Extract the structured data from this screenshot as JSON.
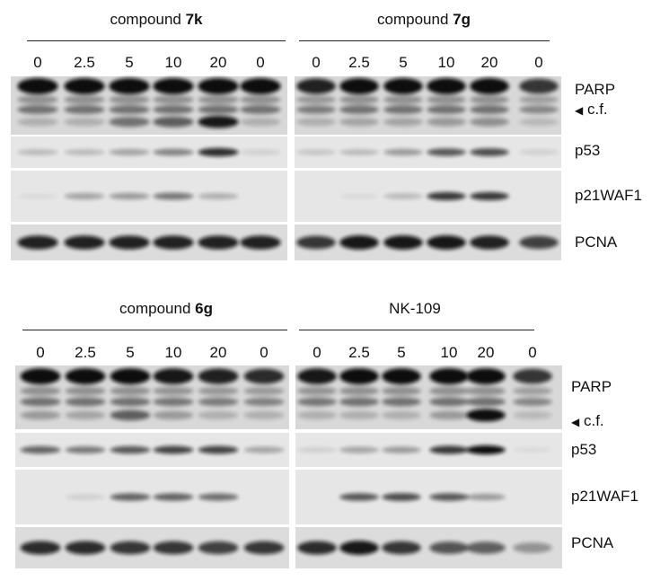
{
  "panels": [
    {
      "id": "7k",
      "title_prefix": "compound ",
      "title_bold": "7k",
      "lanes": [
        "0",
        "2.5",
        "5",
        "10",
        "20",
        "0"
      ],
      "rows": {
        "PARP": [
          1,
          1,
          1,
          1,
          1,
          1
        ],
        "cf": [
          0.2,
          0.2,
          0.5,
          0.6,
          0.95,
          0.2
        ],
        "p53": [
          0.2,
          0.2,
          0.3,
          0.45,
          0.85,
          0.1
        ],
        "p21WAF1": [
          0.05,
          0.3,
          0.35,
          0.5,
          0.25,
          0
        ],
        "PCNA": [
          0.9,
          0.9,
          0.9,
          0.9,
          0.9,
          0.9
        ]
      }
    },
    {
      "id": "7g",
      "title_prefix": "compound ",
      "title_bold": "7g",
      "lanes": [
        "0",
        "2.5",
        "5",
        "10",
        "20",
        "0"
      ],
      "rows": {
        "PARP": [
          0.9,
          1,
          1,
          1,
          1,
          0.8
        ],
        "cf": [
          0.2,
          0.25,
          0.25,
          0.3,
          0.35,
          0.15
        ],
        "p53": [
          0.15,
          0.2,
          0.35,
          0.65,
          0.7,
          0.1
        ],
        "p21WAF1": [
          0,
          0.05,
          0.2,
          0.8,
          0.8,
          0
        ],
        "PCNA": [
          0.8,
          0.95,
          0.95,
          0.95,
          0.9,
          0.75
        ]
      }
    },
    {
      "id": "6g",
      "title_prefix": "compound ",
      "title_bold": "6g",
      "lanes": [
        "0",
        "2.5",
        "5",
        "10",
        "20",
        "0"
      ],
      "rows": {
        "PARP": [
          1,
          1,
          1,
          0.95,
          0.9,
          0.85
        ],
        "cf": [
          0.3,
          0.25,
          0.6,
          0.3,
          0.2,
          0.2
        ],
        "p53": [
          0.6,
          0.5,
          0.65,
          0.75,
          0.75,
          0.3
        ],
        "p21WAF1": [
          0,
          0.1,
          0.6,
          0.6,
          0.55,
          0
        ],
        "PCNA": [
          0.85,
          0.85,
          0.8,
          0.8,
          0.75,
          0.8
        ]
      }
    },
    {
      "id": "nk109",
      "title_prefix": "NK-109",
      "title_bold": "",
      "lanes": [
        "0",
        "2.5",
        "5",
        "10",
        "20",
        "0"
      ],
      "rows": {
        "PARP": [
          0.95,
          1,
          1,
          1,
          1,
          0.8
        ],
        "cf": [
          0.2,
          0.2,
          0.2,
          0.3,
          1,
          0.15
        ],
        "p53": [
          0.1,
          0.3,
          0.35,
          0.8,
          1,
          0.05
        ],
        "p21WAF1": [
          0,
          0.65,
          0.7,
          0.65,
          0.35,
          0
        ],
        "PCNA": [
          0.85,
          0.95,
          0.8,
          0.65,
          0.6,
          0.35
        ]
      }
    }
  ],
  "row_labels": {
    "parp": "PARP",
    "cf": "c.f.",
    "p53": "p53",
    "p21": "p21WAF1",
    "pcna": "PCNA"
  },
  "colors": {
    "band": "#111111",
    "membrane": "#e6e6e6"
  }
}
